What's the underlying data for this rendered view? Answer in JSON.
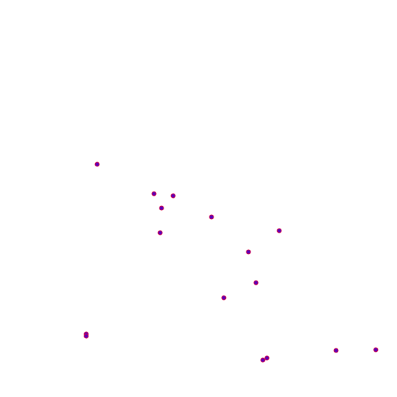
{
  "colors": {
    "background": "#ffffff",
    "point_fill": "#5a00b8",
    "point_stroke": "#e0003c"
  }
}
